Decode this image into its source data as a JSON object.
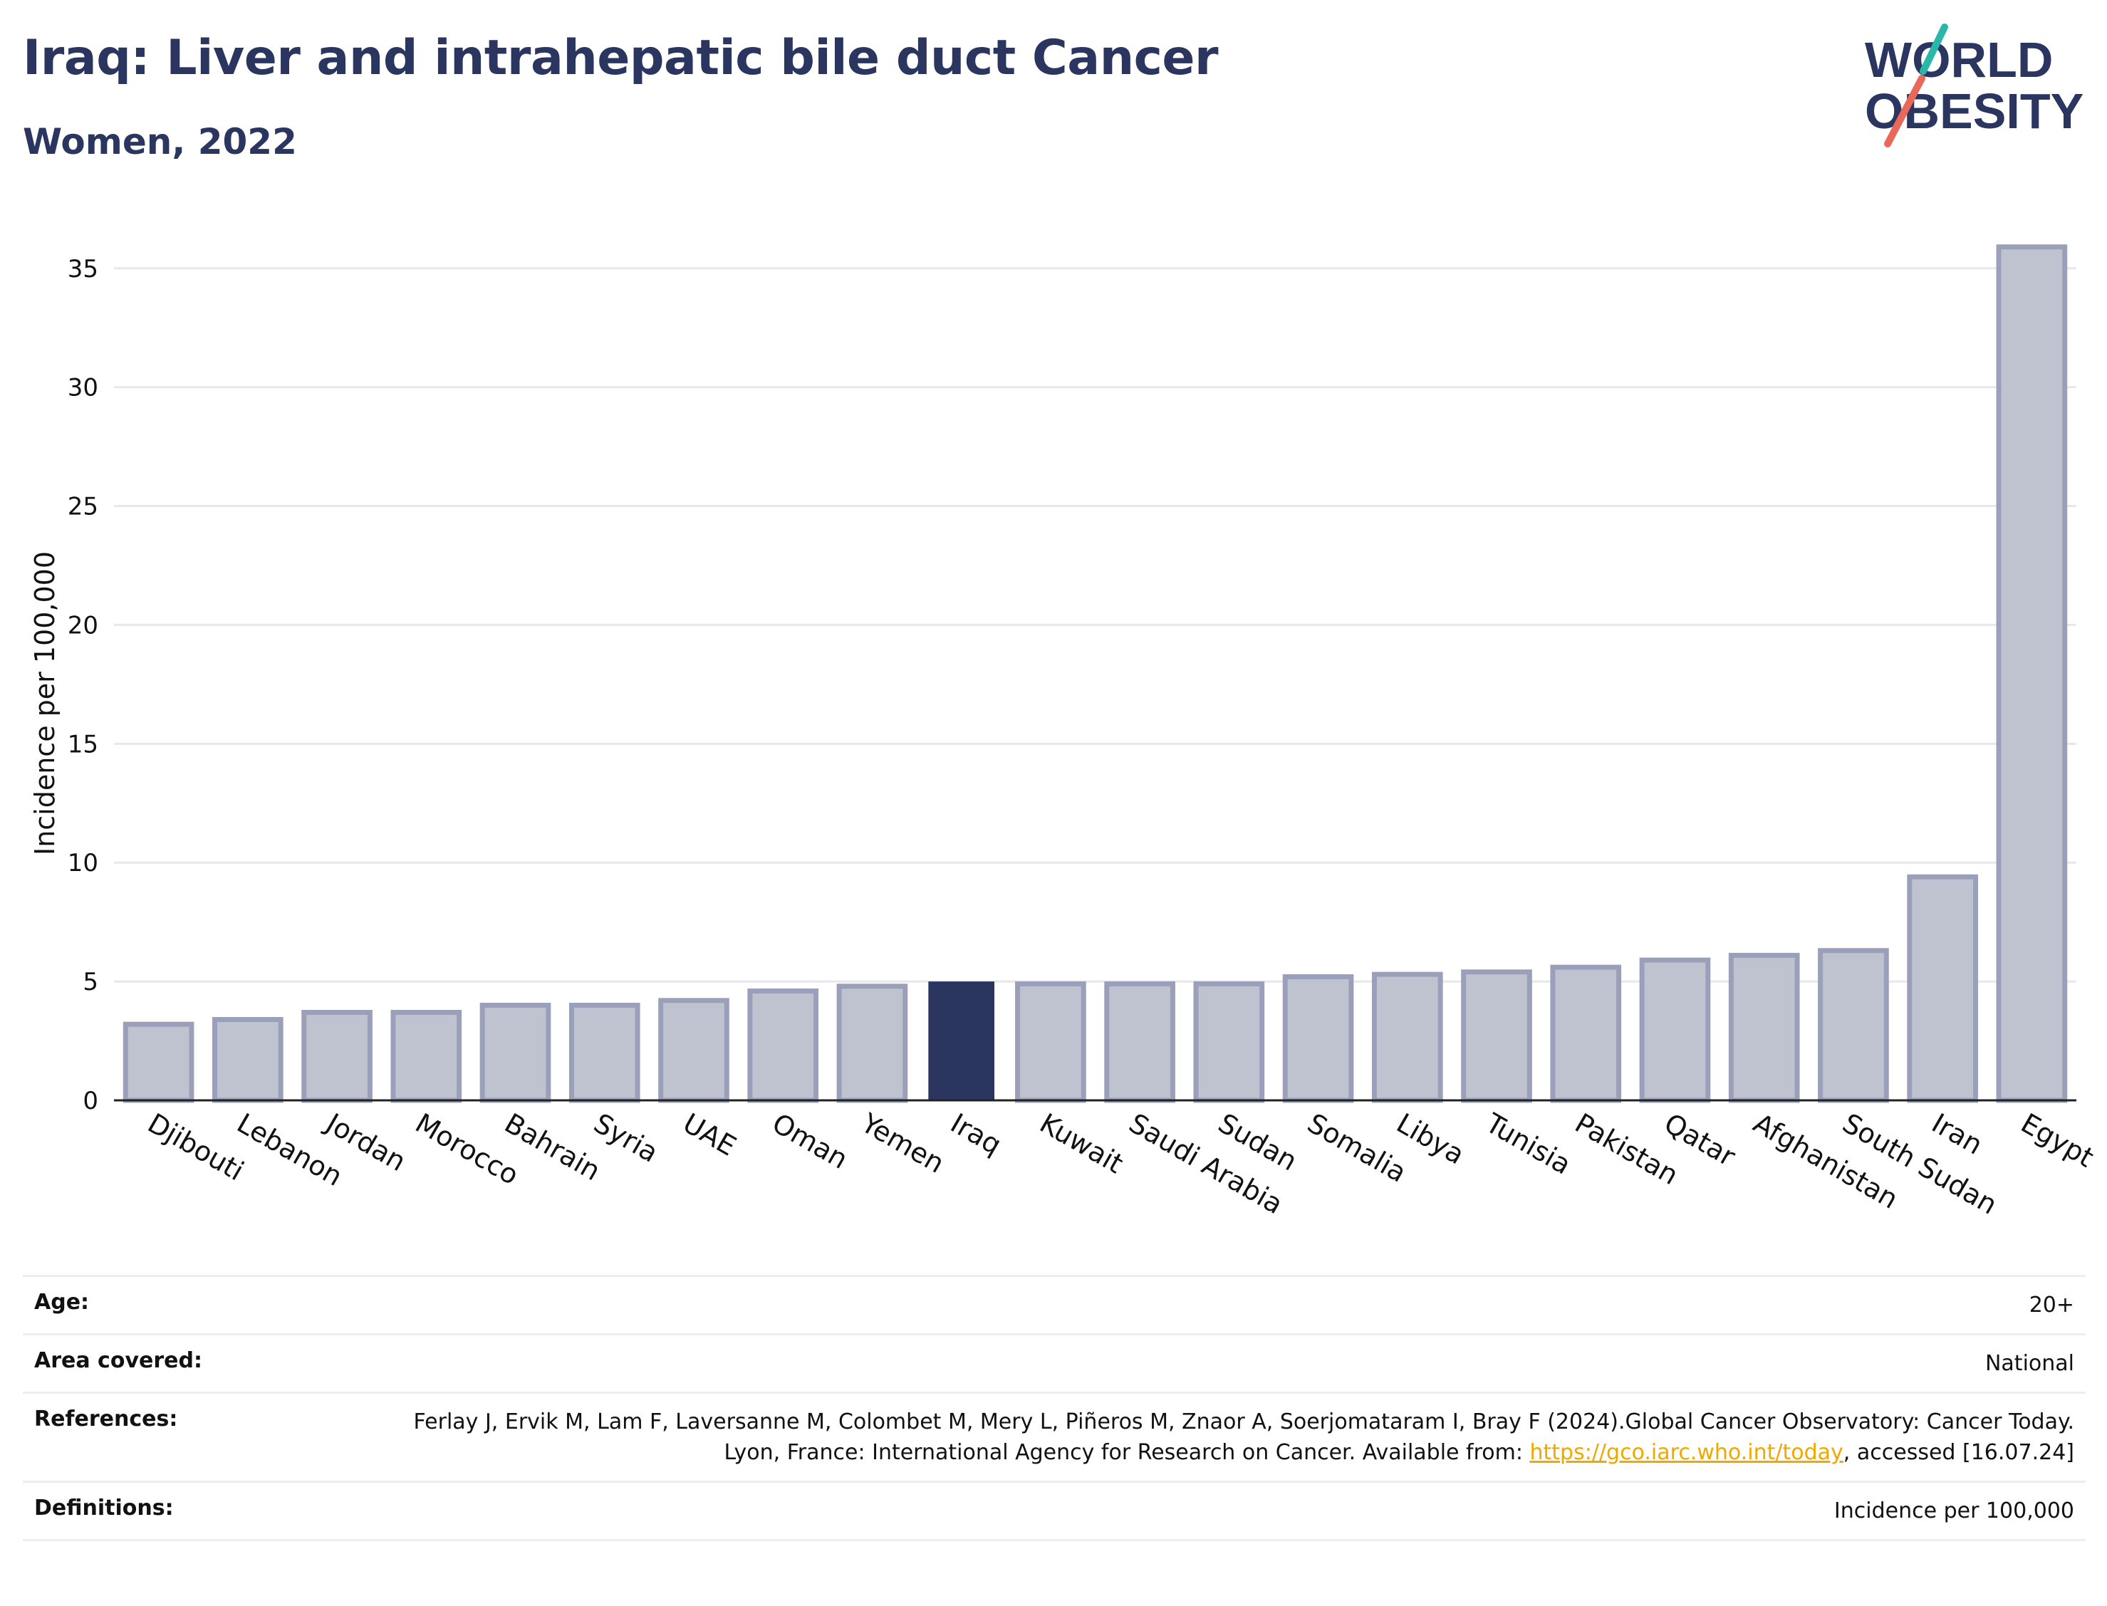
{
  "header": {
    "title": "Iraq: Liver and intrahepatic bile duct Cancer",
    "subtitle": "Women, 2022"
  },
  "logo": {
    "line1": "WORLD",
    "line2": "OBESITY",
    "text_color": "#2a3560",
    "slash_teal": "#2ab7a9",
    "slash_coral": "#e8685a"
  },
  "chart_data": {
    "type": "bar",
    "title": "",
    "xlabel": "",
    "ylabel": "Incidence per 100,000",
    "ylim": [
      0,
      37
    ],
    "yticks": [
      0,
      5,
      10,
      15,
      20,
      25,
      30,
      35
    ],
    "grid": true,
    "highlight": "Iraq",
    "colors": {
      "bar": "#bfc3d0",
      "bar_edge": "#9aa0ba",
      "highlight": "#2a3560",
      "grid": "#e6e8ee"
    },
    "categories": [
      "Djibouti",
      "Lebanon",
      "Jordan",
      "Morocco",
      "Bahrain",
      "Syria",
      "UAE",
      "Oman",
      "Yemen",
      "Iraq",
      "Kuwait",
      "Saudi Arabia",
      "Sudan",
      "Somalia",
      "Libya",
      "Tunisia",
      "Pakistan",
      "Qatar",
      "Afghanistan",
      "South Sudan",
      "Iran",
      "Egypt"
    ],
    "values": [
      3.2,
      3.4,
      3.7,
      3.7,
      4.0,
      4.0,
      4.2,
      4.6,
      4.8,
      5.0,
      4.9,
      4.9,
      4.9,
      5.2,
      5.3,
      5.4,
      5.6,
      5.9,
      6.1,
      6.3,
      9.4,
      35.9
    ]
  },
  "info": {
    "age_label": "Age:",
    "age_value": "20+",
    "area_label": "Area covered:",
    "area_value": "National",
    "refs_label": "References:",
    "refs_text_1": "Ferlay J, Ervik M, Lam F, Laversanne M, Colombet M, Mery L, Piñeros M, Znaor A, Soerjomataram I, Bray F (2024).Global Cancer Observatory: Cancer Today. Lyon, France: International Agency for Research on Cancer. Available from: ",
    "refs_link": "https://gco.iarc.who.int/today",
    "refs_text_2": ", accessed [16.07.24]",
    "defs_label": "Definitions:",
    "defs_value": "Incidence per 100,000"
  }
}
